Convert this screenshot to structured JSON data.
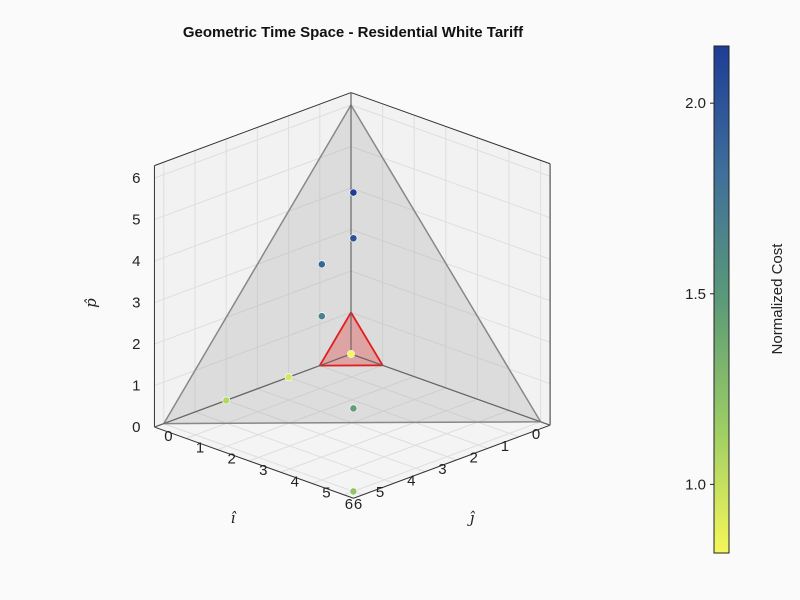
{
  "chart_data": {
    "type": "scatter",
    "title": "Geometric Time Space - Residential White Tariff",
    "axes": {
      "x": {
        "label": "î",
        "ticks": [
          "0",
          "1",
          "2",
          "3",
          "4",
          "5",
          "6"
        ],
        "range": [
          0,
          6.3
        ]
      },
      "y": {
        "label": "ĵ",
        "ticks": [
          "0",
          "1",
          "2",
          "3",
          "4",
          "5",
          "6"
        ],
        "range": [
          0,
          6.3
        ]
      },
      "z": {
        "label": "p̂",
        "ticks": [
          "0",
          "1",
          "2",
          "3",
          "4",
          "5",
          "6"
        ],
        "range": [
          0,
          6.3
        ]
      }
    },
    "grid": true,
    "points": [
      {
        "i": 0.0,
        "j": 0.0,
        "p": 0.0,
        "cost": 0.82
      },
      {
        "i": 2.0,
        "j": 0.0,
        "p": 0.0,
        "cost": 0.95
      },
      {
        "i": 4.0,
        "j": 0.0,
        "p": 0.0,
        "cost": 1.07
      },
      {
        "i": 6.0,
        "j": 6.0,
        "p": 0.0,
        "cost": 1.2
      },
      {
        "i": 6.0,
        "j": 6.0,
        "p": 2.0,
        "cost": 1.45
      },
      {
        "i": 6.0,
        "j": 5.0,
        "p": 3.95,
        "cost": 1.68
      },
      {
        "i": 6.0,
        "j": 5.0,
        "p": 5.2,
        "cost": 1.88
      },
      {
        "i": 6.0,
        "j": 6.0,
        "p": 6.1,
        "cost": 2.02
      },
      {
        "i": 6.0,
        "j": 6.0,
        "p": 7.2,
        "cost": 2.15
      }
    ],
    "surfaces": [
      {
        "name": "",
        "vertices": [
          [
            6,
            0,
            0
          ],
          [
            0,
            6,
            0
          ],
          [
            0,
            0,
            6
          ]
        ],
        "fill": "#a8a8a8",
        "stroke": "#888888"
      },
      {
        "name": "",
        "vertices": [
          [
            1,
            0,
            0
          ],
          [
            0,
            1,
            0
          ],
          [
            0,
            0,
            1
          ]
        ],
        "fill": "#e06060",
        "stroke": "#e02020"
      }
    ],
    "colorbar": {
      "label": "Normalized Cost",
      "ticks": [
        "1.0",
        "1.5",
        "2.0"
      ],
      "range": [
        0.82,
        2.15
      ],
      "colormap": [
        "#f5f75a",
        "#9ccc65",
        "#5a9a78",
        "#3f6f9a",
        "#1e3d96"
      ]
    }
  }
}
